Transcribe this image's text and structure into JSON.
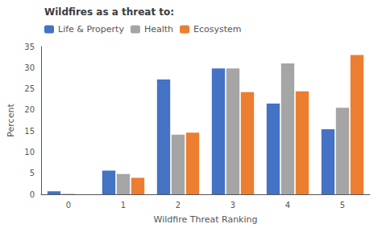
{
  "chart_data": {
    "type": "bar",
    "title": "Wildfires as a threat to:",
    "xlabel": "Wildfire Threat Ranking",
    "ylabel": "Percent",
    "categories": [
      0,
      1,
      2,
      3,
      4,
      5
    ],
    "series": [
      {
        "name": "Life & Property",
        "color": "#4472C4",
        "values": [
          0.7,
          5.6,
          27.2,
          29.8,
          21.5,
          15.4
        ]
      },
      {
        "name": "Health",
        "color": "#A5A5A5",
        "values": [
          0.1,
          4.8,
          14.1,
          29.8,
          31.0,
          20.5
        ]
      },
      {
        "name": "Ecosystem",
        "color": "#ED7D31",
        "values": [
          0.0,
          3.9,
          14.6,
          24.2,
          24.4,
          33.0
        ]
      }
    ],
    "ylim": [
      0,
      35
    ],
    "yticks": [
      0,
      5,
      10,
      15,
      20,
      25,
      30,
      35
    ],
    "grid": false,
    "legend": "upper left"
  }
}
